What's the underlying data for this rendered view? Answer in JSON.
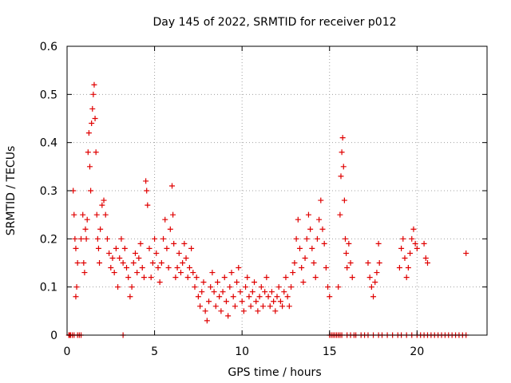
{
  "chart_data": {
    "type": "scatter",
    "title": "Day 145 of 2022, SRMTID for receiver p012",
    "xlabel": "GPS time / hours",
    "ylabel": "SRMTID / TECUs",
    "xlim": [
      0,
      24
    ],
    "ylim": [
      0,
      0.6
    ],
    "xticks": [
      "0",
      "5",
      "10",
      "15",
      "20"
    ],
    "yticks": [
      "0",
      "0.1",
      "0.2",
      "0.3",
      "0.4",
      "0.5",
      "0.6"
    ],
    "grid": true,
    "marker": "+",
    "color": "#e00000",
    "series": [
      {
        "name": "p012",
        "points": [
          [
            0.1,
            0.0
          ],
          [
            0.15,
            0.0
          ],
          [
            0.2,
            0.0
          ],
          [
            0.3,
            0.0
          ],
          [
            0.4,
            0.0
          ],
          [
            0.6,
            0.0
          ],
          [
            0.7,
            0.0
          ],
          [
            0.8,
            0.0
          ],
          [
            3.2,
            0.0
          ],
          [
            15.0,
            0.0
          ],
          [
            15.1,
            0.0
          ],
          [
            15.2,
            0.0
          ],
          [
            15.3,
            0.0
          ],
          [
            15.4,
            0.0
          ],
          [
            15.5,
            0.0
          ],
          [
            15.6,
            0.0
          ],
          [
            15.7,
            0.0
          ],
          [
            16.0,
            0.0
          ],
          [
            16.2,
            0.0
          ],
          [
            16.4,
            0.0
          ],
          [
            16.5,
            0.0
          ],
          [
            16.8,
            0.0
          ],
          [
            17.0,
            0.0
          ],
          [
            17.2,
            0.0
          ],
          [
            17.5,
            0.0
          ],
          [
            17.8,
            0.0
          ],
          [
            18.0,
            0.0
          ],
          [
            18.3,
            0.0
          ],
          [
            18.6,
            0.0
          ],
          [
            18.9,
            0.0
          ],
          [
            19.1,
            0.0
          ],
          [
            19.4,
            0.0
          ],
          [
            19.7,
            0.0
          ],
          [
            20.0,
            0.0
          ],
          [
            20.2,
            0.0
          ],
          [
            20.4,
            0.0
          ],
          [
            20.6,
            0.0
          ],
          [
            20.8,
            0.0
          ],
          [
            21.0,
            0.0
          ],
          [
            21.2,
            0.0
          ],
          [
            21.4,
            0.0
          ],
          [
            21.6,
            0.0
          ],
          [
            21.8,
            0.0
          ],
          [
            22.0,
            0.0
          ],
          [
            22.2,
            0.0
          ],
          [
            22.4,
            0.0
          ],
          [
            22.6,
            0.0
          ],
          [
            22.8,
            0.0
          ],
          [
            0.35,
            0.3
          ],
          [
            0.4,
            0.25
          ],
          [
            0.45,
            0.2
          ],
          [
            0.5,
            0.18
          ],
          [
            0.5,
            0.08
          ],
          [
            0.55,
            0.1
          ],
          [
            0.6,
            0.15
          ],
          [
            0.8,
            0.2
          ],
          [
            0.9,
            0.25
          ],
          [
            0.95,
            0.15
          ],
          [
            1.0,
            0.13
          ],
          [
            1.05,
            0.22
          ],
          [
            1.1,
            0.2
          ],
          [
            1.15,
            0.24
          ],
          [
            1.2,
            0.38
          ],
          [
            1.25,
            0.42
          ],
          [
            1.3,
            0.35
          ],
          [
            1.35,
            0.3
          ],
          [
            1.4,
            0.44
          ],
          [
            1.45,
            0.47
          ],
          [
            1.5,
            0.5
          ],
          [
            1.55,
            0.52
          ],
          [
            1.6,
            0.45
          ],
          [
            1.65,
            0.38
          ],
          [
            1.7,
            0.25
          ],
          [
            1.75,
            0.2
          ],
          [
            1.8,
            0.18
          ],
          [
            1.85,
            0.15
          ],
          [
            1.9,
            0.22
          ],
          [
            2.0,
            0.27
          ],
          [
            2.1,
            0.28
          ],
          [
            2.2,
            0.25
          ],
          [
            2.3,
            0.2
          ],
          [
            2.4,
            0.17
          ],
          [
            2.5,
            0.14
          ],
          [
            2.6,
            0.16
          ],
          [
            2.7,
            0.13
          ],
          [
            2.8,
            0.18
          ],
          [
            2.9,
            0.1
          ],
          [
            3.0,
            0.16
          ],
          [
            3.1,
            0.2
          ],
          [
            3.2,
            0.15
          ],
          [
            3.3,
            0.18
          ],
          [
            3.4,
            0.14
          ],
          [
            3.5,
            0.12
          ],
          [
            3.6,
            0.08
          ],
          [
            3.7,
            0.1
          ],
          [
            3.8,
            0.15
          ],
          [
            3.9,
            0.17
          ],
          [
            4.0,
            0.13
          ],
          [
            4.1,
            0.16
          ],
          [
            4.2,
            0.19
          ],
          [
            4.3,
            0.14
          ],
          [
            4.4,
            0.12
          ],
          [
            4.5,
            0.32
          ],
          [
            4.55,
            0.3
          ],
          [
            4.6,
            0.27
          ],
          [
            4.7,
            0.18
          ],
          [
            4.8,
            0.12
          ],
          [
            4.9,
            0.15
          ],
          [
            5.0,
            0.2
          ],
          [
            5.1,
            0.17
          ],
          [
            5.2,
            0.14
          ],
          [
            5.3,
            0.11
          ],
          [
            5.4,
            0.15
          ],
          [
            5.5,
            0.2
          ],
          [
            5.6,
            0.24
          ],
          [
            5.7,
            0.18
          ],
          [
            5.8,
            0.14
          ],
          [
            5.9,
            0.22
          ],
          [
            6.0,
            0.31
          ],
          [
            6.05,
            0.25
          ],
          [
            6.1,
            0.19
          ],
          [
            6.2,
            0.12
          ],
          [
            6.3,
            0.14
          ],
          [
            6.4,
            0.17
          ],
          [
            6.5,
            0.13
          ],
          [
            6.6,
            0.15
          ],
          [
            6.7,
            0.19
          ],
          [
            6.8,
            0.16
          ],
          [
            6.9,
            0.12
          ],
          [
            7.0,
            0.14
          ],
          [
            7.1,
            0.18
          ],
          [
            7.2,
            0.13
          ],
          [
            7.3,
            0.1
          ],
          [
            7.4,
            0.12
          ],
          [
            7.5,
            0.08
          ],
          [
            7.6,
            0.06
          ],
          [
            7.7,
            0.09
          ],
          [
            7.8,
            0.11
          ],
          [
            7.9,
            0.05
          ],
          [
            8.0,
            0.03
          ],
          [
            8.1,
            0.07
          ],
          [
            8.2,
            0.1
          ],
          [
            8.3,
            0.13
          ],
          [
            8.4,
            0.09
          ],
          [
            8.5,
            0.06
          ],
          [
            8.6,
            0.11
          ],
          [
            8.7,
            0.08
          ],
          [
            8.8,
            0.05
          ],
          [
            8.9,
            0.09
          ],
          [
            9.0,
            0.12
          ],
          [
            9.1,
            0.07
          ],
          [
            9.2,
            0.04
          ],
          [
            9.3,
            0.1
          ],
          [
            9.4,
            0.13
          ],
          [
            9.5,
            0.08
          ],
          [
            9.6,
            0.06
          ],
          [
            9.7,
            0.11
          ],
          [
            9.8,
            0.14
          ],
          [
            9.9,
            0.09
          ],
          [
            10.0,
            0.07
          ],
          [
            10.1,
            0.05
          ],
          [
            10.2,
            0.1
          ],
          [
            10.3,
            0.12
          ],
          [
            10.4,
            0.08
          ],
          [
            10.5,
            0.06
          ],
          [
            10.6,
            0.09
          ],
          [
            10.7,
            0.11
          ],
          [
            10.8,
            0.07
          ],
          [
            10.9,
            0.05
          ],
          [
            11.0,
            0.08
          ],
          [
            11.1,
            0.1
          ],
          [
            11.2,
            0.06
          ],
          [
            11.3,
            0.09
          ],
          [
            11.4,
            0.12
          ],
          [
            11.5,
            0.08
          ],
          [
            11.6,
            0.06
          ],
          [
            11.7,
            0.09
          ],
          [
            11.8,
            0.07
          ],
          [
            11.9,
            0.05
          ],
          [
            12.0,
            0.08
          ],
          [
            12.1,
            0.1
          ],
          [
            12.2,
            0.07
          ],
          [
            12.3,
            0.06
          ],
          [
            12.4,
            0.09
          ],
          [
            12.5,
            0.12
          ],
          [
            12.6,
            0.08
          ],
          [
            12.7,
            0.06
          ],
          [
            12.8,
            0.1
          ],
          [
            12.9,
            0.13
          ],
          [
            13.0,
            0.15
          ],
          [
            13.1,
            0.2
          ],
          [
            13.2,
            0.24
          ],
          [
            13.3,
            0.18
          ],
          [
            13.4,
            0.14
          ],
          [
            13.5,
            0.11
          ],
          [
            13.6,
            0.16
          ],
          [
            13.7,
            0.2
          ],
          [
            13.8,
            0.25
          ],
          [
            13.9,
            0.22
          ],
          [
            14.0,
            0.18
          ],
          [
            14.1,
            0.15
          ],
          [
            14.2,
            0.12
          ],
          [
            14.3,
            0.2
          ],
          [
            14.4,
            0.24
          ],
          [
            14.5,
            0.28
          ],
          [
            14.6,
            0.22
          ],
          [
            14.7,
            0.19
          ],
          [
            14.8,
            0.14
          ],
          [
            14.9,
            0.1
          ],
          [
            15.0,
            0.08
          ],
          [
            15.5,
            0.1
          ],
          [
            15.6,
            0.25
          ],
          [
            15.65,
            0.33
          ],
          [
            15.7,
            0.38
          ],
          [
            15.75,
            0.41
          ],
          [
            15.8,
            0.35
          ],
          [
            15.85,
            0.28
          ],
          [
            15.9,
            0.2
          ],
          [
            15.95,
            0.17
          ],
          [
            16.0,
            0.14
          ],
          [
            16.1,
            0.19
          ],
          [
            16.2,
            0.15
          ],
          [
            16.3,
            0.12
          ],
          [
            17.2,
            0.15
          ],
          [
            17.3,
            0.12
          ],
          [
            17.4,
            0.1
          ],
          [
            17.5,
            0.08
          ],
          [
            17.6,
            0.11
          ],
          [
            17.7,
            0.13
          ],
          [
            17.8,
            0.19
          ],
          [
            17.85,
            0.15
          ],
          [
            19.0,
            0.14
          ],
          [
            19.1,
            0.18
          ],
          [
            19.2,
            0.2
          ],
          [
            19.3,
            0.16
          ],
          [
            19.4,
            0.12
          ],
          [
            19.5,
            0.14
          ],
          [
            19.6,
            0.17
          ],
          [
            19.7,
            0.2
          ],
          [
            19.8,
            0.22
          ],
          [
            19.9,
            0.19
          ],
          [
            20.0,
            0.18
          ],
          [
            20.4,
            0.19
          ],
          [
            20.5,
            0.16
          ],
          [
            20.6,
            0.15
          ],
          [
            22.8,
            0.17
          ]
        ]
      }
    ]
  }
}
